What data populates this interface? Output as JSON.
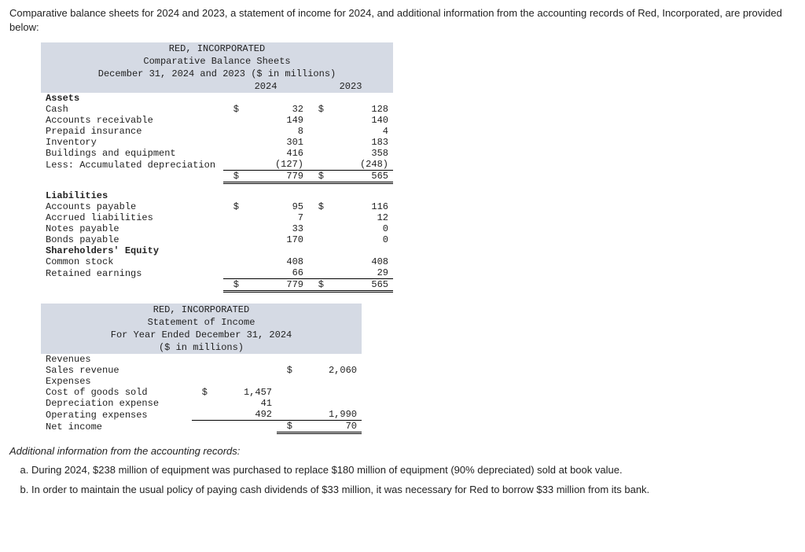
{
  "intro": "Comparative balance sheets for 2024 and 2023, a statement of income for 2024, and additional information from the accounting records of Red, Incorporated, are provided below:",
  "bs": {
    "h1": "RED, INCORPORATED",
    "h2": "Comparative Balance Sheets",
    "h3": "December 31, 2024 and 2023 ($ in millions)",
    "col1": "2024",
    "col2": "2023",
    "assets_label": "Assets",
    "rows_assets": [
      {
        "label": "Cash",
        "s1": "$",
        "v1": "32",
        "s2": "$",
        "v2": "128"
      },
      {
        "label": "Accounts receivable",
        "s1": "",
        "v1": "149",
        "s2": "",
        "v2": "140"
      },
      {
        "label": "Prepaid insurance",
        "s1": "",
        "v1": "8",
        "s2": "",
        "v2": "4"
      },
      {
        "label": "Inventory",
        "s1": "",
        "v1": "301",
        "s2": "",
        "v2": "183"
      },
      {
        "label": "Buildings and equipment",
        "s1": "",
        "v1": "416",
        "s2": "",
        "v2": "358"
      },
      {
        "label": "Less: Accumulated depreciation",
        "s1": "",
        "v1": "(127)",
        "s2": "",
        "v2": "(248)"
      }
    ],
    "assets_total": {
      "s1": "$",
      "v1": "779",
      "s2": "$",
      "v2": "565"
    },
    "liab_label": "Liabilities",
    "rows_liab": [
      {
        "label": "Accounts payable",
        "s1": "$",
        "v1": "95",
        "s2": "$",
        "v2": "116"
      },
      {
        "label": "Accrued liabilities",
        "s1": "",
        "v1": "7",
        "s2": "",
        "v2": "12"
      },
      {
        "label": "Notes payable",
        "s1": "",
        "v1": "33",
        "s2": "",
        "v2": "0"
      },
      {
        "label": "Bonds payable",
        "s1": "",
        "v1": "170",
        "s2": "",
        "v2": "0"
      }
    ],
    "se_label": "Shareholders' Equity",
    "rows_se": [
      {
        "label": "Common stock",
        "s1": "",
        "v1": "408",
        "s2": "",
        "v2": "408"
      },
      {
        "label": "Retained earnings",
        "s1": "",
        "v1": "66",
        "s2": "",
        "v2": "29"
      }
    ],
    "liab_total": {
      "s1": "$",
      "v1": "779",
      "s2": "$",
      "v2": "565"
    }
  },
  "is": {
    "h1": "RED, INCORPORATED",
    "h2": "Statement of Income",
    "h3": "For Year Ended December 31, 2024",
    "h4": "($ in millions)",
    "rev_label": "Revenues",
    "sales": {
      "label": "Sales revenue",
      "s": "$",
      "v": "2,060"
    },
    "exp_label": "Expenses",
    "exp_rows": [
      {
        "label": "Cost of goods sold",
        "s": "$",
        "v": "1,457"
      },
      {
        "label": "Depreciation expense",
        "s": "",
        "v": "41"
      },
      {
        "label": "Operating expenses",
        "s": "",
        "v": "492"
      }
    ],
    "exp_total": "1,990",
    "ni": {
      "label": "Net income",
      "s": "$",
      "v": "70"
    }
  },
  "addl_label": "Additional information from the accounting records:",
  "notes": [
    "During 2024, $238 million of equipment was purchased to replace $180 million of equipment (90% depreciated) sold at book value.",
    "In order to maintain the usual policy of paying cash dividends of $33 million, it was necessary for Red to borrow $33 million from its bank."
  ]
}
